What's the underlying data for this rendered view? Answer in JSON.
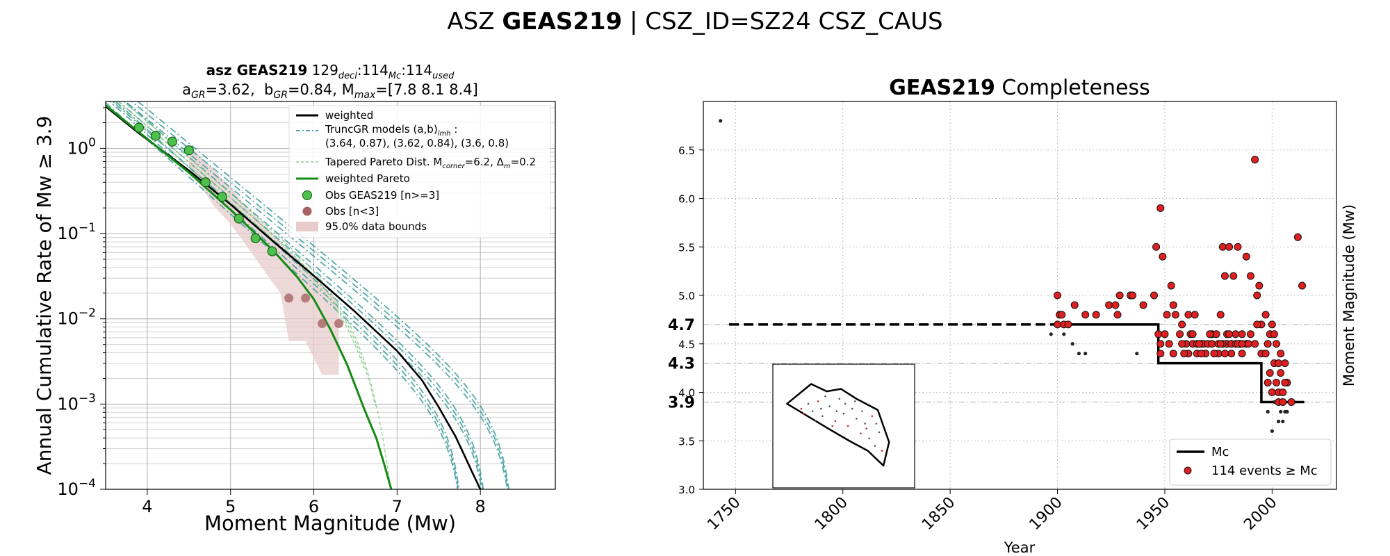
{
  "suptitle": {
    "prefix": "ASZ ",
    "bold": "GEAS219",
    "suffix": " | CSZ_ID=SZ24 CSZ_CAUS"
  },
  "chart_data": [
    {
      "type": "line",
      "title_line1": {
        "bold": "asz GEAS219",
        "n_decl": "129",
        "sub_decl": "decl",
        "n_mc": "114",
        "sub_mc": "Mc",
        "n_used": "114",
        "sub_used": "used"
      },
      "title_line2": {
        "a_label": "a",
        "a_sub": "GR",
        "a_val": "=3.62,  ",
        "b_label": "b",
        "b_sub": "GR",
        "b_val": "=0.84, M",
        "m_sub": "max",
        "m_val": "=[7.8 8.1 8.4]"
      },
      "xlabel": "Moment Magnitude (Mw)",
      "ylabel": "Annual Cumulative Rate of Mw  ≥  3.9",
      "xlim": [
        3.5,
        8.9
      ],
      "ylim_log10": [
        -4,
        0.55
      ],
      "yscale": "log",
      "grid": true,
      "legend_position": "top-right",
      "x_ticks": [
        "4",
        "5",
        "6",
        "7",
        "8"
      ],
      "y_ticks": [
        {
          "exp": "0",
          "base": "10"
        },
        {
          "exp": "−1",
          "base": "10"
        },
        {
          "exp": "−2",
          "base": "10"
        },
        {
          "exp": "−3",
          "base": "10"
        },
        {
          "exp": "−4",
          "base": "10"
        }
      ],
      "legend": [
        {
          "label": "weighted",
          "kind": "line",
          "color": "#000000"
        },
        {
          "label": "TruncGR models (a,b)",
          "sub": "lmh",
          "suffix": " :",
          "label2": " (3.64, 0.87), (3.62, 0.84), (3.6, 0.8)",
          "kind": "dashdot",
          "color": "#3a9a9a"
        },
        {
          "label": "Tapered Pareto Dist. M",
          "sub": "corner",
          "suffix": "=6.2, Δ",
          "sub2": "m",
          "suffix2": "=0.2",
          "kind": "dashed",
          "color": "#8fd08f"
        },
        {
          "label": "weighted Pareto",
          "kind": "line",
          "color": "#138a13"
        },
        {
          "label": "Obs GEAS219 [n>=3]",
          "kind": "marker",
          "color": "#4cc24c"
        },
        {
          "label": "Obs [n<3]",
          "kind": "marker",
          "color": "#a86464"
        },
        {
          "label": "95.0% data bounds",
          "kind": "patch",
          "color": "#e8cccc"
        }
      ],
      "series": [
        {
          "name": "Obs GEAS219 [n>=3]",
          "x": [
            3.9,
            4.1,
            4.3,
            4.5,
            4.7,
            4.9,
            5.1,
            5.3,
            5.5
          ],
          "y": [
            1.75,
            1.4,
            1.2,
            0.95,
            0.4,
            0.27,
            0.15,
            0.088,
            0.062
          ]
        },
        {
          "name": "Obs [n<3]",
          "x": [
            5.7,
            5.9,
            6.1,
            6.3
          ],
          "y": [
            0.0175,
            0.0175,
            0.0088,
            0.0088
          ]
        },
        {
          "name": "95.0% data bounds",
          "x": [
            4.5,
            4.8,
            5.0,
            5.2,
            5.4,
            5.6,
            5.7,
            5.9,
            6.1,
            6.3
          ],
          "upper": [
            1.1,
            0.56,
            0.35,
            0.2,
            0.13,
            0.08,
            0.062,
            0.042,
            0.025,
            0.016
          ],
          "lower": [
            0.6,
            0.21,
            0.13,
            0.07,
            0.037,
            0.02,
            0.0055,
            0.0055,
            0.0022,
            0.0022
          ]
        },
        {
          "name": "weighted",
          "x": [
            3.5,
            3.9,
            4.5,
            5.0,
            5.5,
            6.0,
            6.5,
            7.0,
            7.3,
            7.5,
            7.6,
            7.7,
            7.8,
            7.9,
            8.0
          ],
          "y": [
            3.1,
            1.5,
            0.55,
            0.22,
            0.083,
            0.032,
            0.012,
            0.0042,
            0.0019,
            0.00092,
            0.00062,
            0.00042,
            0.00026,
            0.00016,
            0.0001
          ]
        },
        {
          "name": "weighted Pareto",
          "x": [
            3.5,
            3.9,
            4.5,
            5.0,
            5.5,
            5.8,
            6.0,
            6.2,
            6.4,
            6.6,
            6.75,
            6.85,
            6.93
          ],
          "y": [
            3.2,
            1.55,
            0.52,
            0.19,
            0.065,
            0.031,
            0.017,
            0.0075,
            0.0029,
            0.0009,
            0.0004,
            0.00019,
            0.0001
          ]
        }
      ]
    },
    {
      "type": "scatter",
      "title": {
        "bold": "GEAS219",
        "rest": " Completeness"
      },
      "xlabel": "Year",
      "ylabel": "Moment Magnitude (Mw)",
      "xlim": [
        1735,
        2030
      ],
      "ylim": [
        3.0,
        7.0
      ],
      "grid": true,
      "legend_position": "bottom-right",
      "x_ticks": [
        "1750",
        "1800",
        "1850",
        "1900",
        "1950",
        "2000"
      ],
      "y_ticks": [
        "3.0",
        "3.5",
        "4.0",
        "4.5",
        "5.0",
        "5.5",
        "6.0",
        "6.5"
      ],
      "mc_labels": [
        {
          "value": 4.7,
          "text": "4.7"
        },
        {
          "value": 4.3,
          "text": "4.3"
        },
        {
          "value": 3.9,
          "text": "3.9"
        }
      ],
      "legend": [
        {
          "label": "Mc",
          "kind": "line",
          "color": "#000000"
        },
        {
          "label": "114 events  ≥  Mc",
          "kind": "marker",
          "color": "#e02020"
        }
      ],
      "mc_history": {
        "x": [
          1747,
          1947,
          1947,
          1995,
          1995,
          2015
        ],
        "y": [
          4.7,
          4.7,
          4.3,
          4.3,
          3.9,
          3.9
        ],
        "dashed_until": 1900
      },
      "events_above_mc": [
        [
          1900,
          5.0
        ],
        [
          1900,
          4.7
        ],
        [
          1901,
          4.8
        ],
        [
          1902,
          4.8
        ],
        [
          1903,
          4.7
        ],
        [
          1905,
          4.7
        ],
        [
          1908,
          4.9
        ],
        [
          1913,
          4.8
        ],
        [
          1918,
          4.8
        ],
        [
          1924,
          4.9
        ],
        [
          1927,
          4.9
        ],
        [
          1928,
          4.8
        ],
        [
          1929,
          5.0
        ],
        [
          1934,
          5.0
        ],
        [
          1935,
          5.0
        ],
        [
          1940,
          4.9
        ],
        [
          1945,
          5.0
        ],
        [
          1946,
          5.5
        ],
        [
          1947,
          4.6
        ],
        [
          1948,
          5.9
        ],
        [
          1948,
          4.5
        ],
        [
          1949,
          5.4
        ],
        [
          1950,
          4.6
        ],
        [
          1951,
          4.8
        ],
        [
          1953,
          5.1
        ],
        [
          1954,
          4.9
        ],
        [
          1955,
          4.8
        ],
        [
          1958,
          4.7
        ],
        [
          1960,
          4.5
        ],
        [
          1961,
          4.8
        ],
        [
          1962,
          4.6
        ],
        [
          1963,
          4.5
        ],
        [
          1964,
          4.8
        ],
        [
          1965,
          4.5
        ],
        [
          1967,
          4.5
        ],
        [
          1968,
          4.5
        ],
        [
          1970,
          4.5
        ],
        [
          1972,
          4.5
        ],
        [
          1975,
          4.5
        ],
        [
          1976,
          4.8
        ],
        [
          1977,
          5.5
        ],
        [
          1978,
          5.2
        ],
        [
          1979,
          4.5
        ],
        [
          1980,
          5.5
        ],
        [
          1981,
          4.5
        ],
        [
          1982,
          5.2
        ],
        [
          1983,
          4.6
        ],
        [
          1984,
          5.5
        ],
        [
          1985,
          4.5
        ],
        [
          1986,
          4.6
        ],
        [
          1988,
          5.4
        ],
        [
          1990,
          5.2
        ],
        [
          1992,
          6.4
        ],
        [
          1993,
          5.0
        ],
        [
          1994,
          5.1
        ],
        [
          1995,
          4.7
        ],
        [
          1997,
          4.8
        ],
        [
          1998,
          4.5
        ],
        [
          2000,
          4.7
        ],
        [
          2001,
          4.3
        ],
        [
          2002,
          4.1
        ],
        [
          2003,
          4.0
        ],
        [
          2004,
          4.2
        ],
        [
          2005,
          4.0
        ],
        [
          2006,
          4.3
        ],
        [
          2007,
          4.1
        ],
        [
          2009,
          3.9
        ],
        [
          2012,
          5.6
        ],
        [
          2014,
          5.1
        ],
        [
          1954,
          4.4
        ],
        [
          1957,
          4.6
        ],
        [
          1958,
          4.5
        ],
        [
          1961,
          4.4
        ],
        [
          1965,
          4.4
        ],
        [
          1966,
          4.5
        ],
        [
          1969,
          4.4
        ],
        [
          1972,
          4.6
        ],
        [
          1974,
          4.6
        ],
        [
          1975,
          4.4
        ],
        [
          1977,
          4.5
        ],
        [
          1979,
          4.6
        ],
        [
          1981,
          4.4
        ],
        [
          1983,
          4.5
        ],
        [
          1986,
          4.4
        ],
        [
          1988,
          4.5
        ],
        [
          1990,
          4.6
        ],
        [
          1992,
          4.5
        ],
        [
          1993,
          4.7
        ],
        [
          1995,
          4.4
        ],
        [
          1997,
          4.4
        ],
        [
          1999,
          4.6
        ],
        [
          2001,
          4.6
        ],
        [
          2002,
          4.5
        ],
        [
          1998,
          4.1
        ],
        [
          1999,
          4.2
        ],
        [
          2000,
          4.0
        ],
        [
          2003,
          3.9
        ],
        [
          2005,
          3.9
        ],
        [
          2006,
          4.1
        ],
        [
          2003,
          4.3
        ],
        [
          2004,
          4.4
        ],
        [
          1948,
          4.4
        ],
        [
          1952,
          4.5
        ],
        [
          1959,
          4.4
        ],
        [
          1963,
          4.6
        ],
        [
          1967,
          4.4
        ],
        [
          1971,
          4.6
        ],
        [
          1973,
          4.4
        ],
        [
          1976,
          4.5
        ],
        [
          1978,
          4.4
        ],
        [
          1980,
          4.6
        ],
        [
          1984,
          4.5
        ],
        [
          1986,
          4.5
        ],
        [
          1989,
          4.5
        ]
      ],
      "events_below_mc": [
        [
          1743,
          6.8
        ],
        [
          1897,
          4.6
        ],
        [
          1903,
          4.6
        ],
        [
          1907,
          4.5
        ],
        [
          1910,
          4.4
        ],
        [
          1913,
          4.4
        ],
        [
          1937,
          4.4
        ],
        [
          1998,
          3.8
        ],
        [
          2000,
          3.6
        ],
        [
          2003,
          3.7
        ],
        [
          2004,
          3.8
        ],
        [
          2005,
          3.7
        ],
        [
          2006,
          3.8
        ],
        [
          2007,
          3.8
        ],
        [
          2001,
          3.9
        ],
        [
          2004,
          3.9
        ]
      ],
      "inset_map": {
        "polygon": [
          [
            0.1,
            0.32
          ],
          [
            0.27,
            0.16
          ],
          [
            0.38,
            0.22
          ],
          [
            0.48,
            0.2
          ],
          [
            0.59,
            0.28
          ],
          [
            0.74,
            0.37
          ],
          [
            0.82,
            0.63
          ],
          [
            0.78,
            0.82
          ],
          [
            0.67,
            0.7
          ],
          [
            0.54,
            0.62
          ],
          [
            0.39,
            0.52
          ],
          [
            0.26,
            0.43
          ]
        ],
        "points": [
          [
            0.2,
            0.36
          ],
          [
            0.25,
            0.32
          ],
          [
            0.28,
            0.38
          ],
          [
            0.32,
            0.3
          ],
          [
            0.35,
            0.42
          ],
          [
            0.4,
            0.34
          ],
          [
            0.44,
            0.46
          ],
          [
            0.47,
            0.28
          ],
          [
            0.5,
            0.4
          ],
          [
            0.53,
            0.5
          ],
          [
            0.56,
            0.36
          ],
          [
            0.59,
            0.44
          ],
          [
            0.62,
            0.56
          ],
          [
            0.65,
            0.48
          ],
          [
            0.68,
            0.6
          ],
          [
            0.7,
            0.42
          ],
          [
            0.72,
            0.66
          ],
          [
            0.75,
            0.55
          ],
          [
            0.77,
            0.7
          ],
          [
            0.3,
            0.46
          ],
          [
            0.37,
            0.26
          ],
          [
            0.42,
            0.5
          ],
          [
            0.58,
            0.3
          ],
          [
            0.63,
            0.38
          ],
          [
            0.22,
            0.4
          ],
          [
            0.45,
            0.38
          ],
          [
            0.51,
            0.32
          ],
          [
            0.66,
            0.52
          ],
          [
            0.73,
            0.48
          ],
          [
            0.34,
            0.36
          ]
        ]
      }
    }
  ]
}
